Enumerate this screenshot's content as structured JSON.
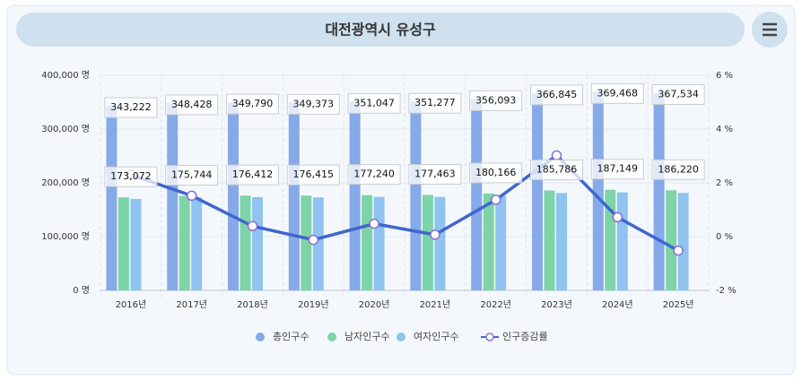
{
  "chart_data": {
    "type": "bar",
    "title": "대전광역시 유성구",
    "categories": [
      "2016년",
      "2017년",
      "2018년",
      "2019년",
      "2020년",
      "2021년",
      "2022년",
      "2023년",
      "2024년",
      "2025년"
    ],
    "series": [
      {
        "name": "총인구수",
        "color": "#86a9e8",
        "values": [
          343222,
          348428,
          349790,
          349373,
          351047,
          351277,
          356093,
          366845,
          369468,
          367534
        ],
        "value_labels": [
          "343,222",
          "348,428",
          "349,790",
          "349,373",
          "351,047",
          "351,277",
          "356,093",
          "366,845",
          "369,468",
          "367,534"
        ]
      },
      {
        "name": "남자인구수",
        "color": "#7dd4a8",
        "values": [
          173072,
          175744,
          176412,
          176415,
          177240,
          177463,
          180166,
          185786,
          187149,
          186220
        ],
        "value_labels": [
          "173,072",
          "175,744",
          "176,412",
          "176,415",
          "177,240",
          "177,463",
          "180,166",
          "185,786",
          "187,149",
          "186,220"
        ]
      },
      {
        "name": "여자인구수",
        "color": "#8fc3f0",
        "values": [
          170150,
          172684,
          173378,
          172958,
          173807,
          173814,
          175927,
          181059,
          182319,
          181314
        ]
      },
      {
        "name": "인구증감률",
        "type": "line",
        "axis": "y2",
        "color": "#3f66d0",
        "values": [
          2.3,
          1.52,
          0.39,
          -0.12,
          0.48,
          0.07,
          1.37,
          3.02,
          0.72,
          -0.52
        ]
      }
    ],
    "ylim": [
      0,
      400000
    ],
    "yticks": [
      {
        "value": 0,
        "label": "0 명"
      },
      {
        "value": 100000,
        "label": "100,000 명"
      },
      {
        "value": 200000,
        "label": "200,000 명"
      },
      {
        "value": 300000,
        "label": "300,000 명"
      },
      {
        "value": 400000,
        "label": "400,000 명"
      }
    ],
    "y2lim": [
      -2,
      6
    ],
    "y2ticks": [
      {
        "value": -2,
        "label": "-2 %"
      },
      {
        "value": 0,
        "label": "0 %"
      },
      {
        "value": 2,
        "label": "2 %"
      },
      {
        "value": 4,
        "label": "4 %"
      },
      {
        "value": 6,
        "label": "6 %"
      }
    ],
    "grid": true
  }
}
